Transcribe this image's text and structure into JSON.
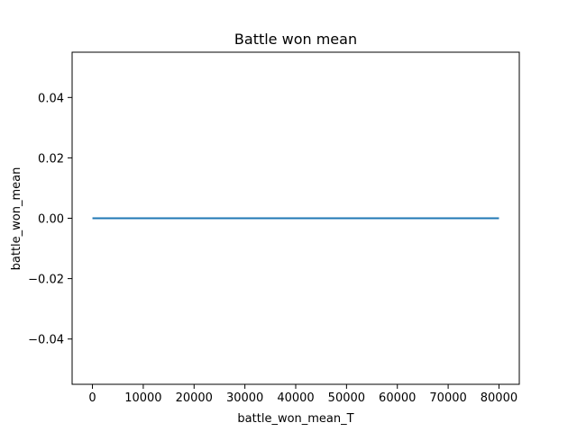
{
  "chart_data": {
    "type": "line",
    "title": "Battle won mean",
    "xlabel": "battle_won_mean_T",
    "ylabel": "battle_won_mean",
    "xlim": [
      -4000,
      84000
    ],
    "ylim": [
      -0.055,
      0.055
    ],
    "x_ticks": [
      0,
      10000,
      20000,
      30000,
      40000,
      50000,
      60000,
      70000,
      80000
    ],
    "x_tick_labels": [
      "0",
      "10000",
      "20000",
      "30000",
      "40000",
      "50000",
      "60000",
      "70000",
      "80000"
    ],
    "y_ticks": [
      -0.04,
      -0.02,
      0.0,
      0.02,
      0.04
    ],
    "y_tick_labels": [
      "−0.04",
      "−0.02",
      "0.00",
      "0.02",
      "0.04"
    ],
    "grid": false,
    "legend": "none",
    "series": [
      {
        "color": "#1f77b4",
        "x": [
          0,
          80000
        ],
        "y": [
          0,
          0
        ]
      }
    ]
  }
}
